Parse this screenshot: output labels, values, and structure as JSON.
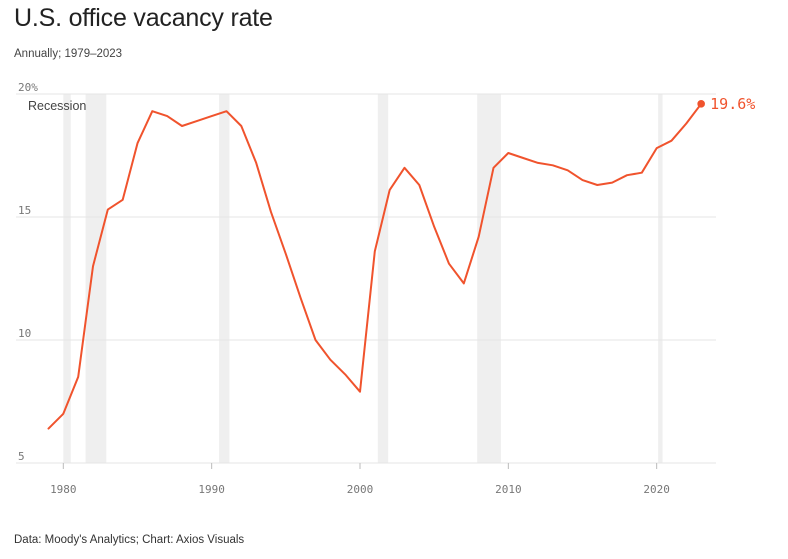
{
  "title": "U.S. office vacancy rate",
  "subtitle": "Annually; 1979–2023",
  "source": "Data: Moody's Analytics; Chart: Axios Visuals",
  "colors": {
    "line": "#f0532d",
    "recession": "#efefef",
    "grid": "#e6e6e6"
  },
  "chart_data": {
    "type": "line",
    "title": "U.S. office vacancy rate",
    "subtitle": "Annually; 1979–2023",
    "xlabel": "",
    "ylabel": "",
    "xlim": [
      1978.9,
      2024
    ],
    "ylim": [
      5,
      20
    ],
    "x_ticks": [
      1980,
      1990,
      2000,
      2010,
      2020
    ],
    "y_ticks": [
      {
        "value": 20,
        "label": "20%"
      },
      {
        "value": 15,
        "label": "15"
      },
      {
        "value": 10,
        "label": "10"
      },
      {
        "value": 5,
        "label": "5"
      }
    ],
    "grid": "horizontal",
    "recession_label": "Recession",
    "recessions": [
      [
        1980.0,
        1980.5
      ],
      [
        1981.5,
        1982.9
      ],
      [
        1990.5,
        1991.2
      ],
      [
        2001.2,
        2001.9
      ],
      [
        2007.9,
        2009.5
      ],
      [
        2020.1,
        2020.4
      ]
    ],
    "end_label": "19.6%",
    "series": [
      {
        "x": [
          1979,
          1980,
          1981,
          1982,
          1983,
          1984,
          1985,
          1986,
          1987,
          1988,
          1989,
          1990,
          1991,
          1992,
          1993,
          1994,
          1995,
          1996,
          1997,
          1998,
          1999,
          2000,
          2001,
          2002,
          2003,
          2004,
          2005,
          2006,
          2007,
          2008,
          2009,
          2010,
          2011,
          2012,
          2013,
          2014,
          2015,
          2016,
          2017,
          2018,
          2019,
          2020,
          2021,
          2022,
          2023
        ],
        "values": [
          6.4,
          7.0,
          8.5,
          13.0,
          15.3,
          15.7,
          18.0,
          19.3,
          19.1,
          18.7,
          18.9,
          19.1,
          19.3,
          18.7,
          17.2,
          15.2,
          13.5,
          11.7,
          10.0,
          9.2,
          8.6,
          7.9,
          13.6,
          16.1,
          17.0,
          16.3,
          14.6,
          13.1,
          12.3,
          14.2,
          17.0,
          17.6,
          17.4,
          17.2,
          17.1,
          16.9,
          16.5,
          16.3,
          16.4,
          16.7,
          16.8,
          17.8,
          18.1,
          18.8,
          19.6
        ]
      }
    ]
  }
}
